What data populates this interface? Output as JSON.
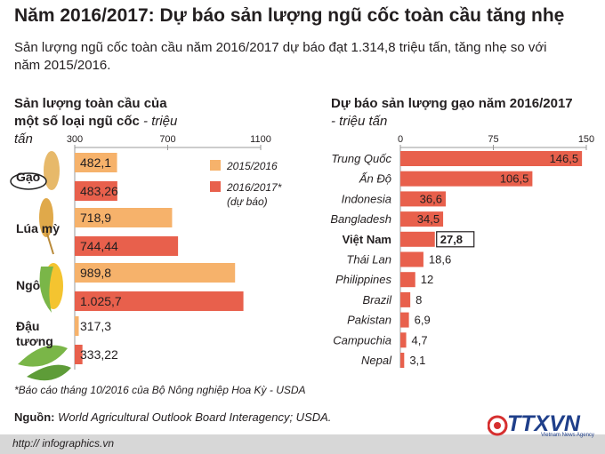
{
  "header": {
    "title": "Năm 2016/2017: Dự báo sản lượng ngũ cốc toàn cầu tăng nhẹ",
    "subtitle": "Sản lượng ngũ cốc toàn cầu năm 2016/2017 dự báo đạt 1.314,8 triệu tấn, tăng nhẹ so với năm 2015/2016."
  },
  "left_section": {
    "title": "Sản lượng toàn cầu của một số loại ngũ cốc",
    "unit": " - triệu tấn"
  },
  "right_section": {
    "title": "Dự báo sản lượng gạo năm 2016/2017",
    "unit": "- triệu tấn"
  },
  "footnote": "*Báo cáo tháng 10/2016 của Bộ Nông nghiệp Hoa Kỳ - USDA",
  "source": {
    "label": "Nguồn:",
    "text": " World Agricultural Outlook Board Interagency; USDA."
  },
  "footer": {
    "url": "http:// infographics.vn"
  },
  "logo": {
    "text": "TTXVN",
    "subtext": "Vietnam News Agency"
  },
  "colors": {
    "orange": "#f6b26b",
    "red": "#e8604c",
    "axis": "#999999"
  },
  "chart_data": [
    {
      "type": "bar",
      "orientation": "horizontal",
      "xlim": [
        300,
        1100
      ],
      "ticks": [
        300,
        700,
        1100
      ],
      "ticks_text": [
        "300",
        "700",
        "1100"
      ],
      "categories": [
        {
          "name": "Gạo",
          "icon": "rice-icon"
        },
        {
          "name": "Lúa mỳ",
          "icon": "wheat-icon"
        },
        {
          "name": "Ngô",
          "icon": "corn-icon"
        },
        {
          "name": "Đậu tương",
          "icon": "soybean-icon"
        }
      ],
      "series": [
        {
          "name": "2015/2016",
          "color": "#f6b26b",
          "values": [
            482.1,
            718.9,
            989.8,
            317.3
          ],
          "labels": [
            "482,1",
            "718,9",
            "989,8",
            "317,3"
          ]
        },
        {
          "name": "2016/2017*",
          "note": "(dự báo)",
          "color": "#e8604c",
          "values": [
            483.26,
            744.44,
            1025.7,
            333.22
          ],
          "labels": [
            "483,26",
            "744,44",
            "1.025,7",
            "333,22"
          ]
        }
      ]
    },
    {
      "type": "bar",
      "orientation": "horizontal",
      "xlim": [
        0,
        150
      ],
      "ticks": [
        0,
        75,
        150
      ],
      "ticks_text": [
        "0",
        "75",
        "150"
      ],
      "categories": [
        "Trung Quốc",
        "Ấn Độ",
        "Indonesia",
        "Bangladesh",
        "Việt Nam",
        "Thái Lan",
        "Philippines",
        "Brazil",
        "Pakistan",
        "Campuchia",
        "Nepal"
      ],
      "values": [
        146.5,
        106.5,
        36.6,
        34.5,
        27.8,
        18.6,
        12,
        8,
        6.9,
        4.7,
        3.1
      ],
      "labels": [
        "146,5",
        "106,5",
        "36,6",
        "34,5",
        "27,8",
        "18,6",
        "12",
        "8",
        "6,9",
        "4,7",
        "3,1"
      ],
      "highlight": "Việt Nam",
      "color": "#e8604c"
    }
  ]
}
